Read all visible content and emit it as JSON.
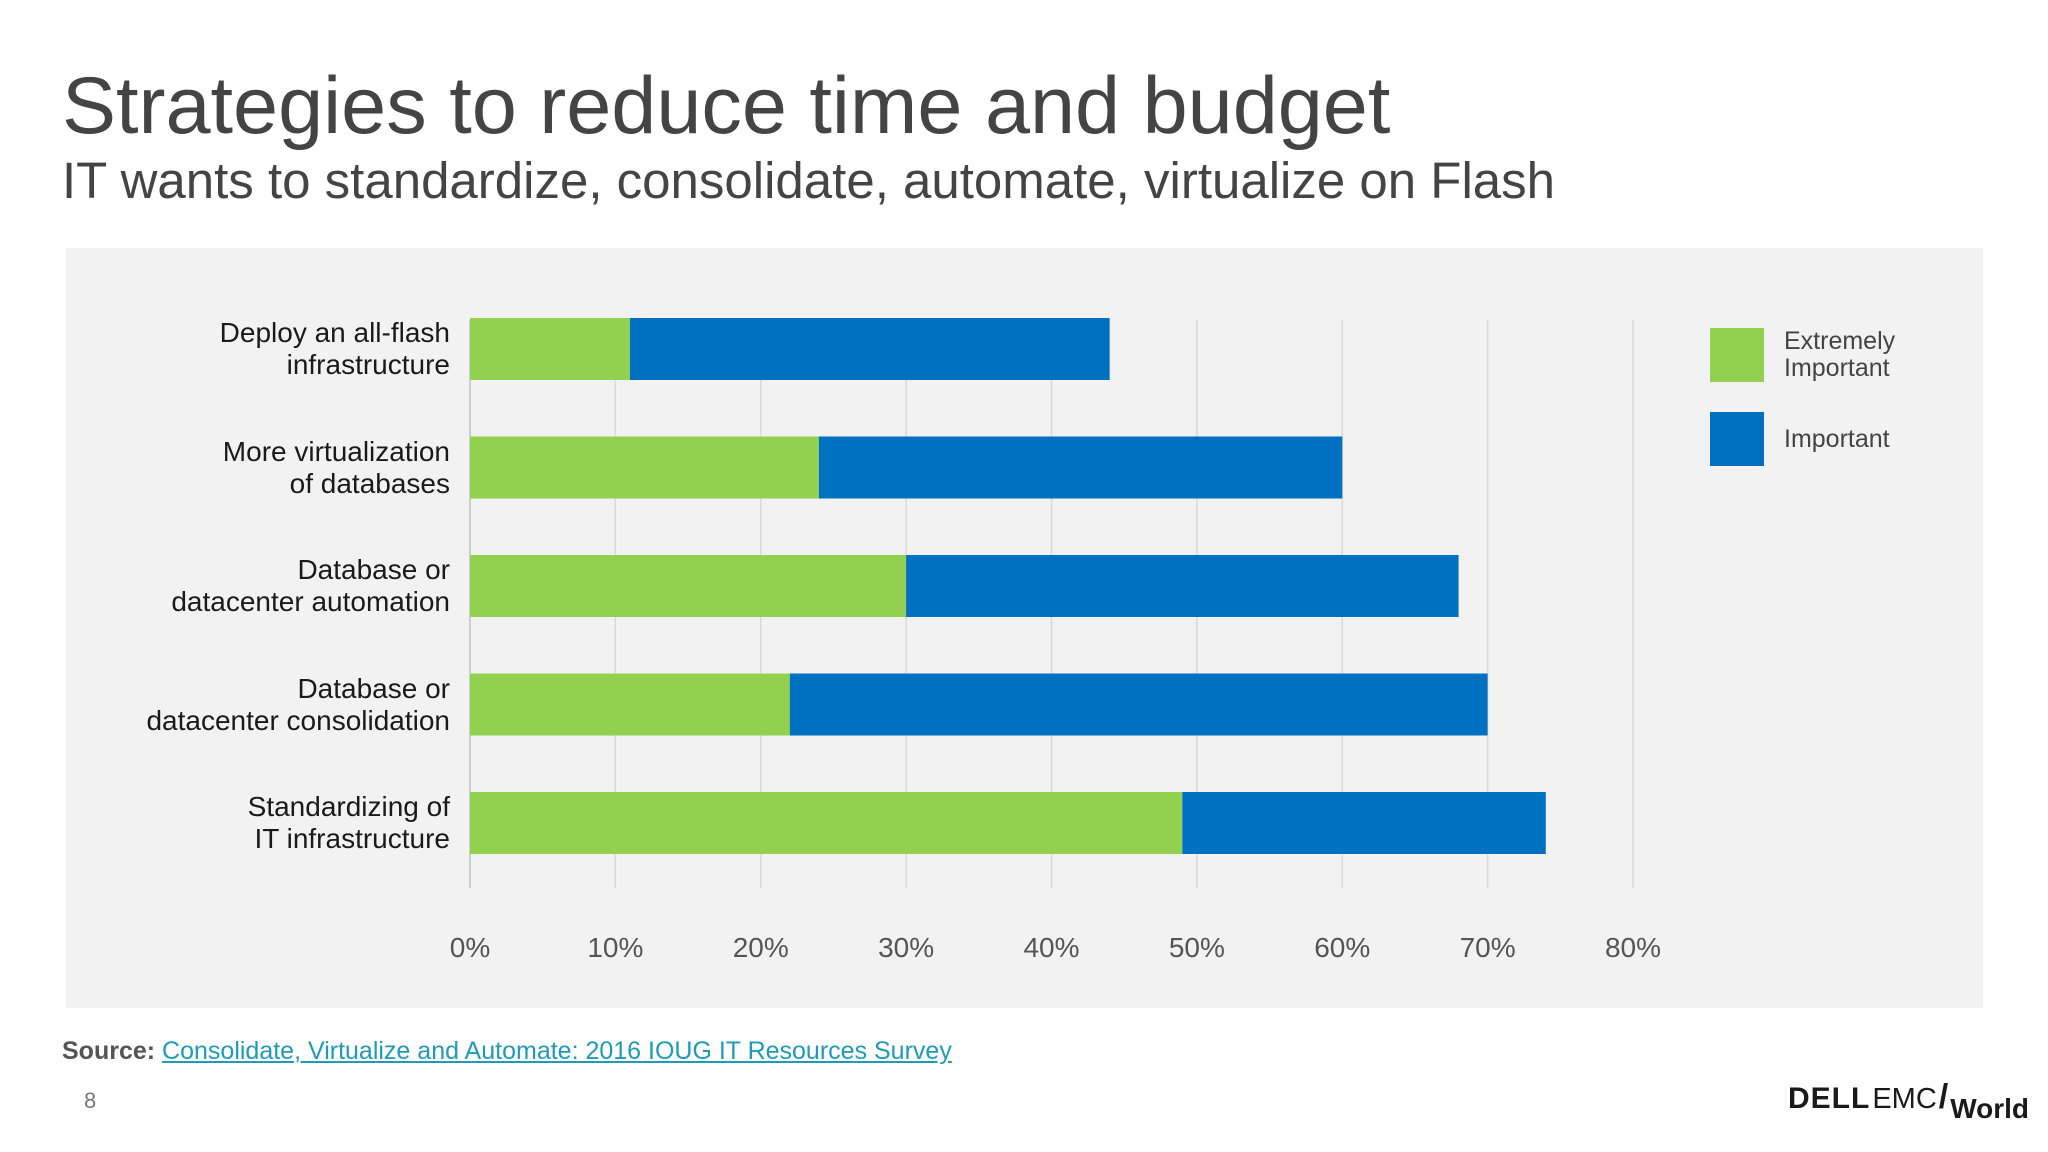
{
  "slide": {
    "title": "Strategies to reduce time and budget",
    "subtitle": "IT wants to standardize, consolidate, automate, virtualize on Flash",
    "page_number": "8",
    "source_prefix": "Source:",
    "source_link": "Consolidate, Virtualize and Automate: 2016 IOUG IT Resources Survey",
    "logo": {
      "dell": "DELL",
      "emc": "EMC",
      "world": "World"
    }
  },
  "colors": {
    "extremely_important": "#92d050",
    "important": "#0070c0",
    "panel_bg": "#f2f2f2",
    "gridline": "#d9d9d9"
  },
  "chart_data": {
    "type": "bar",
    "orientation": "horizontal",
    "stacked": true,
    "categories": [
      "Deploy an all-flash\ninfrastructure",
      "More virtualization\nof databases",
      "Database or\ndatacenter automation",
      "Database or\ndatacenter consolidation",
      "Standardizing of\nIT infrastructure"
    ],
    "series": [
      {
        "name": "Extremely Important",
        "values": [
          11,
          24,
          30,
          22,
          49
        ]
      },
      {
        "name": "Important",
        "values": [
          33,
          36,
          38,
          48,
          25
        ]
      }
    ],
    "xlim": [
      0,
      80
    ],
    "xticks": [
      "0%",
      "10%",
      "20%",
      "30%",
      "40%",
      "50%",
      "60%",
      "70%",
      "80%"
    ],
    "grid": true,
    "legend": "top-right"
  }
}
